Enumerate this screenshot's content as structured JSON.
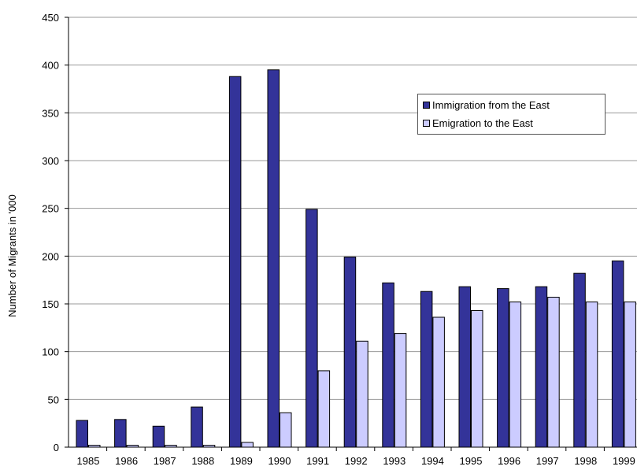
{
  "chart_data": {
    "type": "bar",
    "title": "",
    "xlabel": "",
    "ylabel": "Number of Migrants in '000",
    "ylim": [
      0,
      450
    ],
    "yticks": [
      0,
      50,
      100,
      150,
      200,
      250,
      300,
      350,
      400,
      450
    ],
    "grid": true,
    "legend_position": "upper-right",
    "categories": [
      "1985",
      "1986",
      "1987",
      "1988",
      "1989",
      "1990",
      "1991",
      "1992",
      "1993",
      "1994",
      "1995",
      "1996",
      "1997",
      "1998",
      "1999"
    ],
    "series": [
      {
        "name": "Immigration from the East",
        "color": "#333399",
        "values": [
          28,
          29,
          22,
          42,
          388,
          395,
          249,
          199,
          172,
          163,
          168,
          166,
          168,
          182,
          195
        ]
      },
      {
        "name": "Emigration to the East",
        "color": "#ccccff",
        "values": [
          2,
          2,
          2,
          2,
          5,
          36,
          80,
          111,
          119,
          136,
          143,
          152,
          157,
          152,
          152
        ]
      }
    ]
  }
}
